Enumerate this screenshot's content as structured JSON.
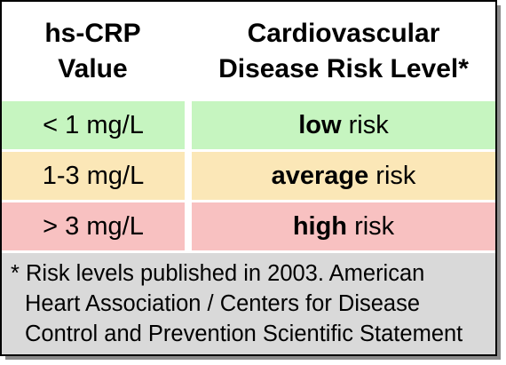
{
  "table": {
    "header": {
      "col1_line1": "hs-CRP",
      "col1_line2": "Value",
      "col2_line1": "Cardiovascular",
      "col2_line2": "Disease Risk Level*"
    },
    "rows": [
      {
        "value": "< 1 mg/L",
        "risk_strong": "low",
        "risk_rest": " risk",
        "color": "#c6f5c0"
      },
      {
        "value": "1-3 mg/L",
        "risk_strong": "average",
        "risk_rest": " risk",
        "color": "#fbe7b7"
      },
      {
        "value": "> 3 mg/L",
        "risk_strong": "high",
        "risk_rest": " risk",
        "color": "#f8c1c1"
      }
    ]
  },
  "footnote": {
    "line1": "* Risk levels published in 2003. American",
    "line2": "Heart Association / Centers for Disease",
    "line3": "Control and Prevention Scientific Statement",
    "background": "#d9d9d9"
  }
}
